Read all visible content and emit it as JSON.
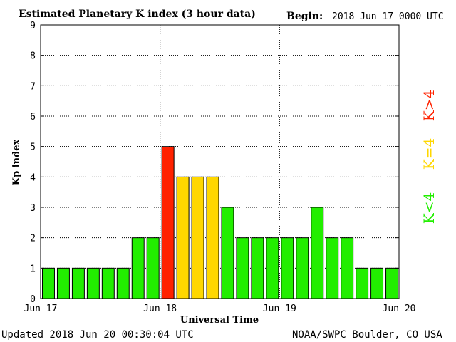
{
  "header": {
    "title": "Estimated Planetary K index (3 hour data)",
    "begin_label": "Begin:",
    "begin_value": "2018 Jun 17 0000 UTC"
  },
  "footer": {
    "updated": "Updated 2018 Jun 20 00:30:04 UTC",
    "source": "NOAA/SWPC Boulder, CO USA"
  },
  "legend": {
    "high": "K>4",
    "equal": "K=4",
    "low": "K<4"
  },
  "colors": {
    "low": "#22ee00",
    "equal": "#ffd700",
    "high": "#ff2200",
    "frame": "#000000"
  },
  "chart_data": {
    "type": "bar",
    "title": "Estimated Planetary K index (3 hour data)",
    "xlabel": "Universal Time",
    "ylabel": "Kp index",
    "ylim": [
      0,
      9
    ],
    "yticks": [
      0,
      1,
      2,
      3,
      4,
      5,
      6,
      7,
      8,
      9
    ],
    "xticks": [
      "Jun 17",
      "Jun 18",
      "Jun 19",
      "Jun 20"
    ],
    "bars_per_day": 8,
    "grid": true,
    "values": [
      1,
      1,
      1,
      1,
      1,
      1,
      2,
      2,
      5,
      4,
      4,
      4,
      3,
      2,
      2,
      2,
      2,
      2,
      3,
      2,
      2,
      1,
      1,
      1
    ]
  }
}
